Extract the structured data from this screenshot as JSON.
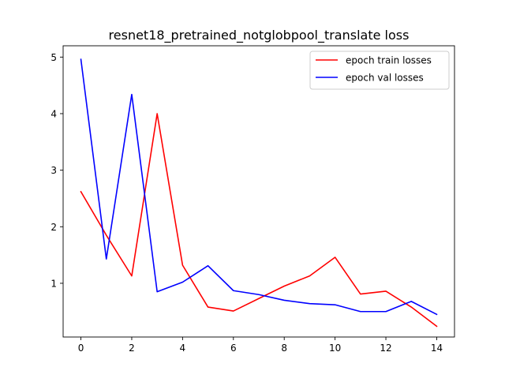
{
  "chart_data": {
    "type": "line",
    "title": "resnet18_pretrained_notglobpool_translate loss",
    "xlabel": "",
    "ylabel": "",
    "x": [
      0,
      1,
      2,
      3,
      4,
      5,
      6,
      7,
      8,
      9,
      10,
      11,
      12,
      13,
      14
    ],
    "xlim": [
      -0.7,
      14.7
    ],
    "ylim": [
      0.05,
      5.2
    ],
    "xticks": [
      0,
      2,
      4,
      6,
      8,
      10,
      12,
      14
    ],
    "yticks": [
      1,
      2,
      3,
      4,
      5
    ],
    "grid": false,
    "legend_position": "top-right",
    "series": [
      {
        "name": "epoch train losses",
        "color": "#ff0000",
        "values": [
          2.62,
          1.85,
          1.13,
          4.0,
          1.32,
          0.58,
          0.51,
          0.73,
          0.95,
          1.13,
          1.46,
          0.81,
          0.86,
          0.58,
          0.24
        ]
      },
      {
        "name": "epoch val losses",
        "color": "#0000ff",
        "values": [
          4.96,
          1.43,
          4.34,
          0.85,
          1.02,
          1.31,
          0.87,
          0.8,
          0.7,
          0.64,
          0.62,
          0.5,
          0.5,
          0.68,
          0.45
        ]
      }
    ]
  }
}
